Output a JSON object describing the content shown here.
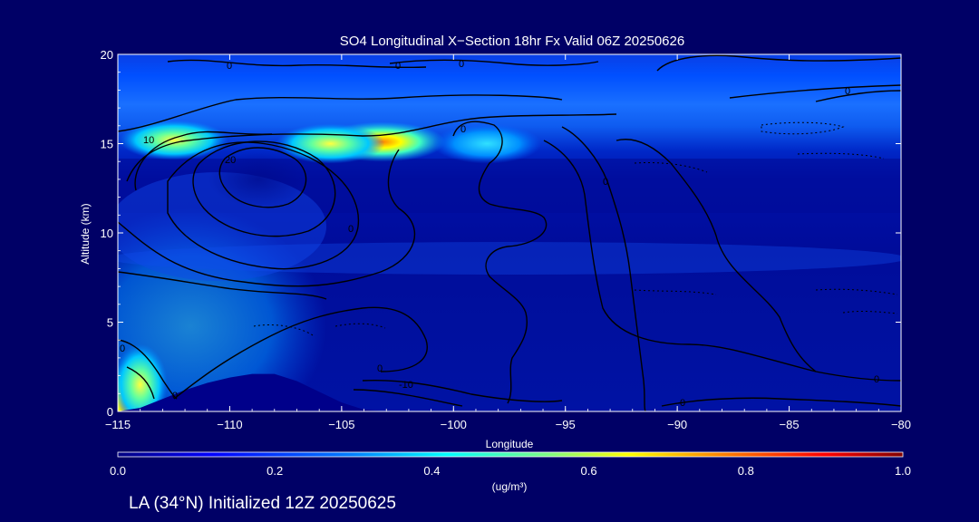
{
  "chart_data": {
    "type": "heatmap",
    "title": "SO4 Longitudinal X−Section 18hr  Fx Valid 06Z 20250626",
    "xlabel": "Longitude",
    "ylabel": "Altitude (km)",
    "xlim": [
      -115,
      -80
    ],
    "ylim": [
      0,
      20
    ],
    "x_ticks": [
      -115,
      -110,
      -105,
      -100,
      -95,
      -90,
      -85,
      -80
    ],
    "x_tick_labels": [
      "−115",
      "−110",
      "−105",
      "−100",
      "−95",
      "−90",
      "−85",
      "−80"
    ],
    "y_ticks": [
      0,
      5,
      10,
      15,
      20
    ],
    "y_tick_labels": [
      "0",
      "5",
      "10",
      "15",
      "20"
    ],
    "colorbar": {
      "min": 0.0,
      "max": 1.0,
      "ticks": [
        0.0,
        0.2,
        0.4,
        0.6,
        0.8,
        1.0
      ],
      "tick_labels": [
        "0.0",
        "0.2",
        "0.4",
        "0.6",
        "0.8",
        "1.0"
      ],
      "unit_label": "(ug/m³)",
      "colors": [
        "#000080",
        "#0000ff",
        "#0080ff",
        "#00ffff",
        "#80ff80",
        "#ffff00",
        "#ff8000",
        "#ff0000",
        "#800000"
      ]
    },
    "contour_labels": [
      "0",
      "10",
      "20",
      "-10"
    ],
    "hotspots": [
      {
        "lon": -103.2,
        "alt": 15.1,
        "value": 0.65
      },
      {
        "lon": -114.6,
        "alt": 0.4,
        "value": 0.55
      },
      {
        "lon": -114.0,
        "alt": 1.5,
        "value": 0.4
      },
      {
        "lon": -112.5,
        "alt": 15.2,
        "value": 0.38
      },
      {
        "lon": -98.5,
        "alt": 15.0,
        "value": 0.33
      },
      {
        "lon": -105.5,
        "alt": 15.0,
        "value": 0.35
      }
    ],
    "terrain": [
      [
        -115,
        0
      ],
      [
        -114,
        0.2
      ],
      [
        -113,
        0.7
      ],
      [
        -112,
        1.2
      ],
      [
        -111,
        1.6
      ],
      [
        -110,
        1.9
      ],
      [
        -109,
        2.1
      ],
      [
        -108,
        2.1
      ],
      [
        -107,
        1.7
      ],
      [
        -106,
        1.1
      ],
      [
        -105,
        0.5
      ],
      [
        -104,
        0.1
      ],
      [
        -103,
        0
      ]
    ],
    "grid": false
  },
  "footer": {
    "text": "LA (34°N) Initialized 12Z 20250625"
  }
}
